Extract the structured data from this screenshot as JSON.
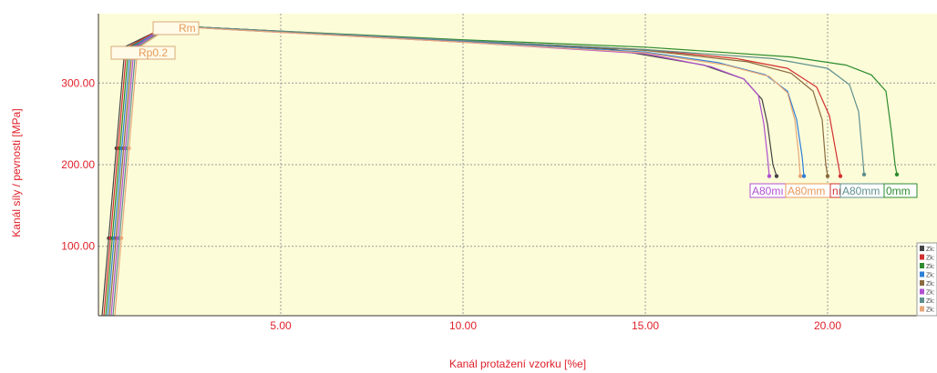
{
  "chart_data": {
    "type": "line",
    "xlabel": "Kanál protažení vzorku  [%e]",
    "ylabel": "Kanál síly / pevnosti  [MPa]",
    "xlim": [
      0,
      23
    ],
    "ylim": [
      15,
      385
    ],
    "x_ticks": [
      5,
      10,
      15,
      20
    ],
    "x_tick_labels": [
      "5.00",
      "10.00",
      "15.00",
      "20.00"
    ],
    "y_ticks": [
      100,
      200,
      300
    ],
    "y_tick_labels": [
      "100.00",
      "200.00",
      "300.00"
    ],
    "grid": true,
    "background": "#fcfcd8",
    "label_color": "#e0202a",
    "markers": {
      "rm": "Rm",
      "rp": "Rp0.2",
      "elongation": [
        "A80mı",
        "A80mm",
        "nı",
        "A80mm",
        "0mm"
      ]
    },
    "legend": {
      "position": "bottom-right",
      "entry_label": "Zk:"
    },
    "series": [
      {
        "color": "#444444",
        "values": [
          [
            0.1,
            15
          ],
          [
            0.7,
            330
          ],
          [
            0.75,
            345
          ],
          [
            1.9,
            370
          ],
          [
            3,
            368
          ],
          [
            10,
            352
          ],
          [
            14,
            342
          ],
          [
            16.6,
            322
          ],
          [
            17.7,
            305
          ],
          [
            18.2,
            280
          ],
          [
            18.35,
            250
          ],
          [
            18.5,
            200
          ],
          [
            18.6,
            186
          ]
        ]
      },
      {
        "color": "#d23030",
        "values": [
          [
            0.15,
            15
          ],
          [
            0.75,
            330
          ],
          [
            0.85,
            345
          ],
          [
            1.9,
            371
          ],
          [
            3,
            368
          ],
          [
            10,
            352
          ],
          [
            15,
            341
          ],
          [
            17.5,
            330
          ],
          [
            18.9,
            318
          ],
          [
            19.7,
            295
          ],
          [
            20.05,
            260
          ],
          [
            20.25,
            210
          ],
          [
            20.35,
            186
          ]
        ]
      },
      {
        "color": "#2e8b2e",
        "values": [
          [
            0.2,
            15
          ],
          [
            0.8,
            330
          ],
          [
            0.9,
            345
          ],
          [
            2.0,
            371
          ],
          [
            3,
            368
          ],
          [
            10,
            353
          ],
          [
            15,
            344
          ],
          [
            19,
            332
          ],
          [
            20.5,
            322
          ],
          [
            21.2,
            310
          ],
          [
            21.6,
            290
          ],
          [
            21.75,
            240
          ],
          [
            21.85,
            200
          ],
          [
            21.9,
            188
          ]
        ]
      },
      {
        "color": "#2f7fd8",
        "values": [
          [
            0.25,
            15
          ],
          [
            0.85,
            330
          ],
          [
            0.95,
            345
          ],
          [
            1.9,
            370
          ],
          [
            3,
            368
          ],
          [
            10,
            351
          ],
          [
            15,
            338
          ],
          [
            17,
            325
          ],
          [
            18.3,
            310
          ],
          [
            18.9,
            290
          ],
          [
            19.15,
            255
          ],
          [
            19.3,
            210
          ],
          [
            19.35,
            186
          ]
        ]
      },
      {
        "color": "#8b6a3e",
        "values": [
          [
            0.3,
            15
          ],
          [
            0.9,
            330
          ],
          [
            1.0,
            345
          ],
          [
            2.0,
            371
          ],
          [
            3,
            368
          ],
          [
            10,
            352
          ],
          [
            15,
            340
          ],
          [
            17.8,
            326
          ],
          [
            19.0,
            312
          ],
          [
            19.6,
            290
          ],
          [
            19.85,
            255
          ],
          [
            19.95,
            200
          ],
          [
            20.0,
            186
          ]
        ]
      },
      {
        "color": "#b050d0",
        "values": [
          [
            0.35,
            15
          ],
          [
            0.95,
            330
          ],
          [
            1.05,
            345
          ],
          [
            1.9,
            371
          ],
          [
            3,
            367
          ],
          [
            10,
            350
          ],
          [
            15,
            336
          ],
          [
            16.8,
            320
          ],
          [
            17.7,
            305
          ],
          [
            18.1,
            285
          ],
          [
            18.25,
            250
          ],
          [
            18.35,
            210
          ],
          [
            18.4,
            186
          ]
        ]
      },
      {
        "color": "#5f8f8f",
        "values": [
          [
            0.4,
            15
          ],
          [
            1.0,
            330
          ],
          [
            1.1,
            345
          ],
          [
            2.0,
            371
          ],
          [
            3,
            368
          ],
          [
            10,
            352
          ],
          [
            15,
            341
          ],
          [
            18.5,
            330
          ],
          [
            20.0,
            318
          ],
          [
            20.6,
            298
          ],
          [
            20.85,
            265
          ],
          [
            20.95,
            215
          ],
          [
            21.0,
            188
          ]
        ]
      },
      {
        "color": "#e8a878",
        "values": [
          [
            0.45,
            15
          ],
          [
            1.05,
            330
          ],
          [
            1.15,
            345
          ],
          [
            2.0,
            370
          ],
          [
            3,
            367
          ],
          [
            10,
            350
          ],
          [
            15,
            337
          ],
          [
            17.2,
            322
          ],
          [
            18.4,
            308
          ],
          [
            18.9,
            288
          ],
          [
            19.1,
            255
          ],
          [
            19.2,
            215
          ],
          [
            19.25,
            186
          ]
        ]
      }
    ]
  }
}
